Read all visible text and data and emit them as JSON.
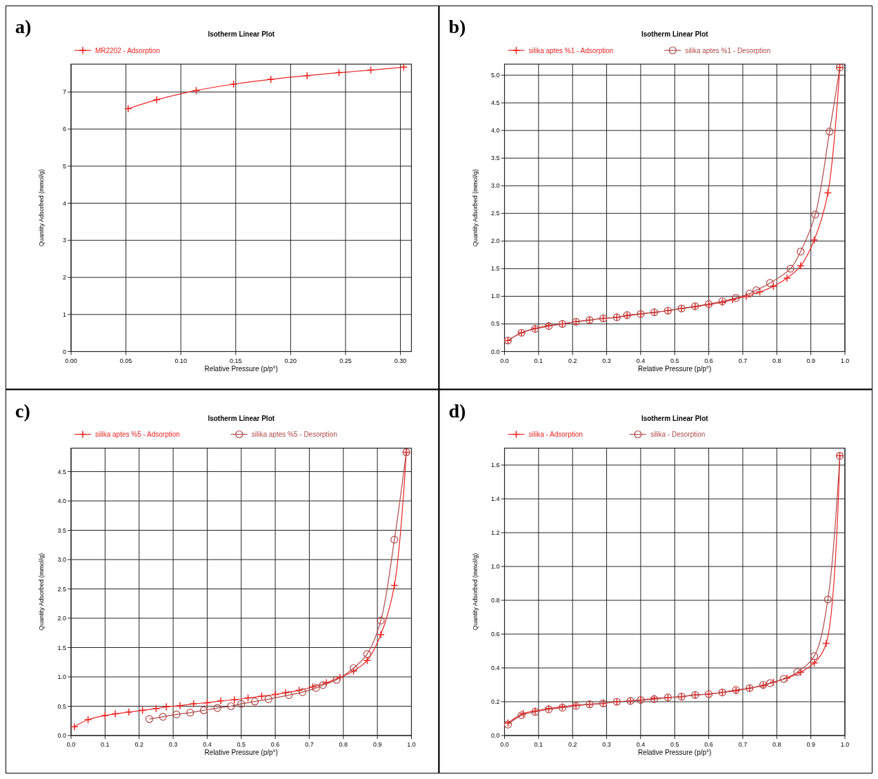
{
  "chart_data": [
    {
      "type": "line",
      "title": "Isotherm Linear Plot",
      "xlabel": "Relative Pressure (p/p°)",
      "ylabel": "Quantity Adsorbed (mmol/g)",
      "annotations": [
        "a)"
      ],
      "legend": "top left",
      "grid": true,
      "xlim": [
        0,
        0.31
      ],
      "xticks": [
        {
          "value": 0,
          "label": "0.00"
        },
        0.05,
        {
          "value": 0.1,
          "label": "0.10"
        },
        0.15,
        {
          "value": 0.2,
          "label": "0.20"
        },
        0.25,
        {
          "value": 0.3,
          "label": "0.30"
        }
      ],
      "ylim": [
        0,
        7.75
      ],
      "yticks": [
        0,
        1,
        2,
        3,
        4,
        5,
        6,
        7
      ],
      "series": [
        {
          "name": "MR2202 - Adsorption",
          "color": "#ee2222",
          "marker": "cross",
          "x": [
            0.052,
            0.078,
            0.114,
            0.148,
            0.182,
            0.215,
            0.244,
            0.273,
            0.303
          ],
          "values": [
            6.55,
            6.79,
            7.04,
            7.21,
            7.34,
            7.44,
            7.52,
            7.59,
            7.67
          ]
        }
      ]
    },
    {
      "type": "line",
      "title": "Isotherm Linear Plot",
      "xlabel": "Relative Pressure (p/p°)",
      "ylabel": "Quantity Adsorbed (mmol/g)",
      "annotations": [
        "b)"
      ],
      "legend": "top left",
      "grid": true,
      "xlim": [
        0,
        1
      ],
      "xticks": [
        {
          "value": 0,
          "label": "0.0"
        },
        0.1,
        0.2,
        0.3,
        0.4,
        0.5,
        0.6,
        0.7,
        0.8,
        0.9,
        {
          "value": 1,
          "label": "1.0"
        }
      ],
      "ylim": [
        0,
        5.2
      ],
      "yticks": [
        {
          "value": 0,
          "label": "0.0"
        },
        0.5,
        {
          "value": 1,
          "label": "1.0"
        },
        1.5,
        {
          "value": 2,
          "label": "2.0"
        },
        2.5,
        {
          "value": 3,
          "label": "3.0"
        },
        3.5,
        {
          "value": 4,
          "label": "4.0"
        },
        4.5,
        {
          "value": 5,
          "label": "5.0"
        }
      ],
      "series": [
        {
          "name": "silika aptes %1 - Adsorption",
          "color": "#ee2222",
          "marker": "cross",
          "x": [
            0.01,
            0.05,
            0.09,
            0.13,
            0.17,
            0.21,
            0.25,
            0.29,
            0.33,
            0.36,
            0.4,
            0.44,
            0.48,
            0.52,
            0.56,
            0.6,
            0.64,
            0.67,
            0.71,
            0.75,
            0.79,
            0.83,
            0.87,
            0.91,
            0.95,
            0.985
          ],
          "values": [
            0.2,
            0.34,
            0.42,
            0.47,
            0.5,
            0.54,
            0.57,
            0.6,
            0.62,
            0.65,
            0.68,
            0.71,
            0.74,
            0.78,
            0.81,
            0.85,
            0.89,
            0.94,
            1.0,
            1.08,
            1.18,
            1.33,
            1.55,
            2.02,
            2.87,
            5.14
          ]
        },
        {
          "name": "silika aptes %1 - Desorption",
          "color": "#b04848",
          "marker": "circle",
          "x": [
            0.985,
            0.955,
            0.913,
            0.87,
            0.84,
            0.78,
            0.74,
            0.72,
            0.68,
            0.64,
            0.6,
            0.56,
            0.52,
            0.48,
            0.44,
            0.4,
            0.36,
            0.33,
            0.29,
            0.25,
            0.21,
            0.17,
            0.13,
            0.09,
            0.05,
            0.01
          ],
          "values": [
            5.14,
            3.98,
            2.48,
            1.81,
            1.5,
            1.24,
            1.11,
            1.05,
            0.97,
            0.91,
            0.86,
            0.82,
            0.78,
            0.74,
            0.71,
            0.68,
            0.66,
            0.62,
            0.6,
            0.57,
            0.54,
            0.5,
            0.46,
            0.41,
            0.34,
            0.2
          ]
        }
      ]
    },
    {
      "type": "line",
      "title": "Isotherm Linear Plot",
      "xlabel": "Relative Pressure (p/p°)",
      "ylabel": "Quantity Adsorbed (mmol/g)",
      "annotations": [
        "c)"
      ],
      "legend": "top left",
      "grid": true,
      "xlim": [
        0,
        1
      ],
      "xticks": [
        {
          "value": 0,
          "label": "0.0"
        },
        0.1,
        0.2,
        0.3,
        0.4,
        0.5,
        0.6,
        0.7,
        0.8,
        0.9,
        {
          "value": 1,
          "label": "1.0"
        }
      ],
      "ylim": [
        0,
        4.9
      ],
      "yticks": [
        {
          "value": 0,
          "label": "0.0"
        },
        0.5,
        {
          "value": 1,
          "label": "1.0"
        },
        1.5,
        {
          "value": 2,
          "label": "2.0"
        },
        2.5,
        {
          "value": 3,
          "label": "3.0"
        },
        3.5,
        {
          "value": 4,
          "label": "4.0"
        },
        4.5
      ],
      "series": [
        {
          "name": "silika aptes %5 - Adsorption",
          "color": "#ee2222",
          "marker": "cross",
          "x": [
            0.01,
            0.05,
            0.1,
            0.13,
            0.17,
            0.21,
            0.25,
            0.28,
            0.32,
            0.36,
            0.4,
            0.44,
            0.48,
            0.52,
            0.56,
            0.6,
            0.63,
            0.67,
            0.71,
            0.75,
            0.79,
            0.83,
            0.87,
            0.91,
            0.95,
            0.985
          ],
          "values": [
            0.15,
            0.27,
            0.34,
            0.37,
            0.4,
            0.43,
            0.46,
            0.49,
            0.51,
            0.54,
            0.56,
            0.59,
            0.61,
            0.64,
            0.67,
            0.7,
            0.73,
            0.77,
            0.83,
            0.9,
            0.99,
            1.1,
            1.28,
            1.72,
            2.56,
            4.83
          ]
        },
        {
          "name": "silika aptes %5 - Desorption",
          "color": "#b04848",
          "marker": "circle",
          "x": [
            0.985,
            0.95,
            0.91,
            0.87,
            0.83,
            0.78,
            0.74,
            0.72,
            0.68,
            0.64,
            0.58,
            0.54,
            0.5,
            0.47,
            0.43,
            0.39,
            0.35,
            0.31,
            0.27,
            0.23
          ],
          "values": [
            4.83,
            3.34,
            1.96,
            1.39,
            1.15,
            0.95,
            0.86,
            0.81,
            0.74,
            0.69,
            0.62,
            0.58,
            0.54,
            0.5,
            0.47,
            0.43,
            0.39,
            0.36,
            0.32,
            0.28
          ]
        }
      ]
    },
    {
      "type": "line",
      "title": "Isotherm Linear Plot",
      "xlabel": "Relative Pressure (p/p°)",
      "ylabel": "Quantity Adsorbed (mmol/g)",
      "annotations": [
        "d)"
      ],
      "legend": "top left",
      "grid": true,
      "xlim": [
        0,
        1
      ],
      "xticks": [
        {
          "value": 0,
          "label": "0.0"
        },
        0.1,
        0.2,
        0.3,
        0.4,
        0.5,
        0.6,
        0.7,
        0.8,
        0.9,
        {
          "value": 1,
          "label": "1.0"
        }
      ],
      "ylim": [
        0,
        1.7
      ],
      "yticks": [
        {
          "value": 0,
          "label": "0.0"
        },
        0.2,
        0.4,
        0.6,
        0.8,
        {
          "value": 1,
          "label": "1.0"
        },
        1.2,
        1.4,
        1.6
      ],
      "series": [
        {
          "name": "silika - Adsorption",
          "color": "#ee2222",
          "marker": "cross",
          "x": [
            0.01,
            0.055,
            0.09,
            0.13,
            0.17,
            0.21,
            0.25,
            0.29,
            0.33,
            0.37,
            0.4,
            0.44,
            0.48,
            0.52,
            0.56,
            0.6,
            0.64,
            0.68,
            0.72,
            0.76,
            0.79,
            0.83,
            0.87,
            0.91,
            0.945,
            0.985
          ],
          "values": [
            0.075,
            0.13,
            0.145,
            0.16,
            0.17,
            0.18,
            0.185,
            0.19,
            0.2,
            0.205,
            0.21,
            0.22,
            0.225,
            0.23,
            0.24,
            0.245,
            0.255,
            0.265,
            0.28,
            0.295,
            0.315,
            0.34,
            0.375,
            0.43,
            0.545,
            1.655
          ]
        },
        {
          "name": "silika - Desorption",
          "color": "#b04848",
          "marker": "circle",
          "x": [
            0.985,
            0.95,
            0.91,
            0.86,
            0.82,
            0.78,
            0.76,
            0.72,
            0.68,
            0.64,
            0.6,
            0.56,
            0.52,
            0.48,
            0.44,
            0.4,
            0.37,
            0.33,
            0.29,
            0.25,
            0.21,
            0.17,
            0.13,
            0.09,
            0.05,
            0.01
          ],
          "values": [
            1.655,
            0.805,
            0.47,
            0.375,
            0.335,
            0.31,
            0.3,
            0.28,
            0.27,
            0.255,
            0.245,
            0.24,
            0.23,
            0.225,
            0.215,
            0.21,
            0.205,
            0.2,
            0.19,
            0.185,
            0.175,
            0.165,
            0.155,
            0.14,
            0.12,
            0.065
          ]
        }
      ]
    }
  ]
}
